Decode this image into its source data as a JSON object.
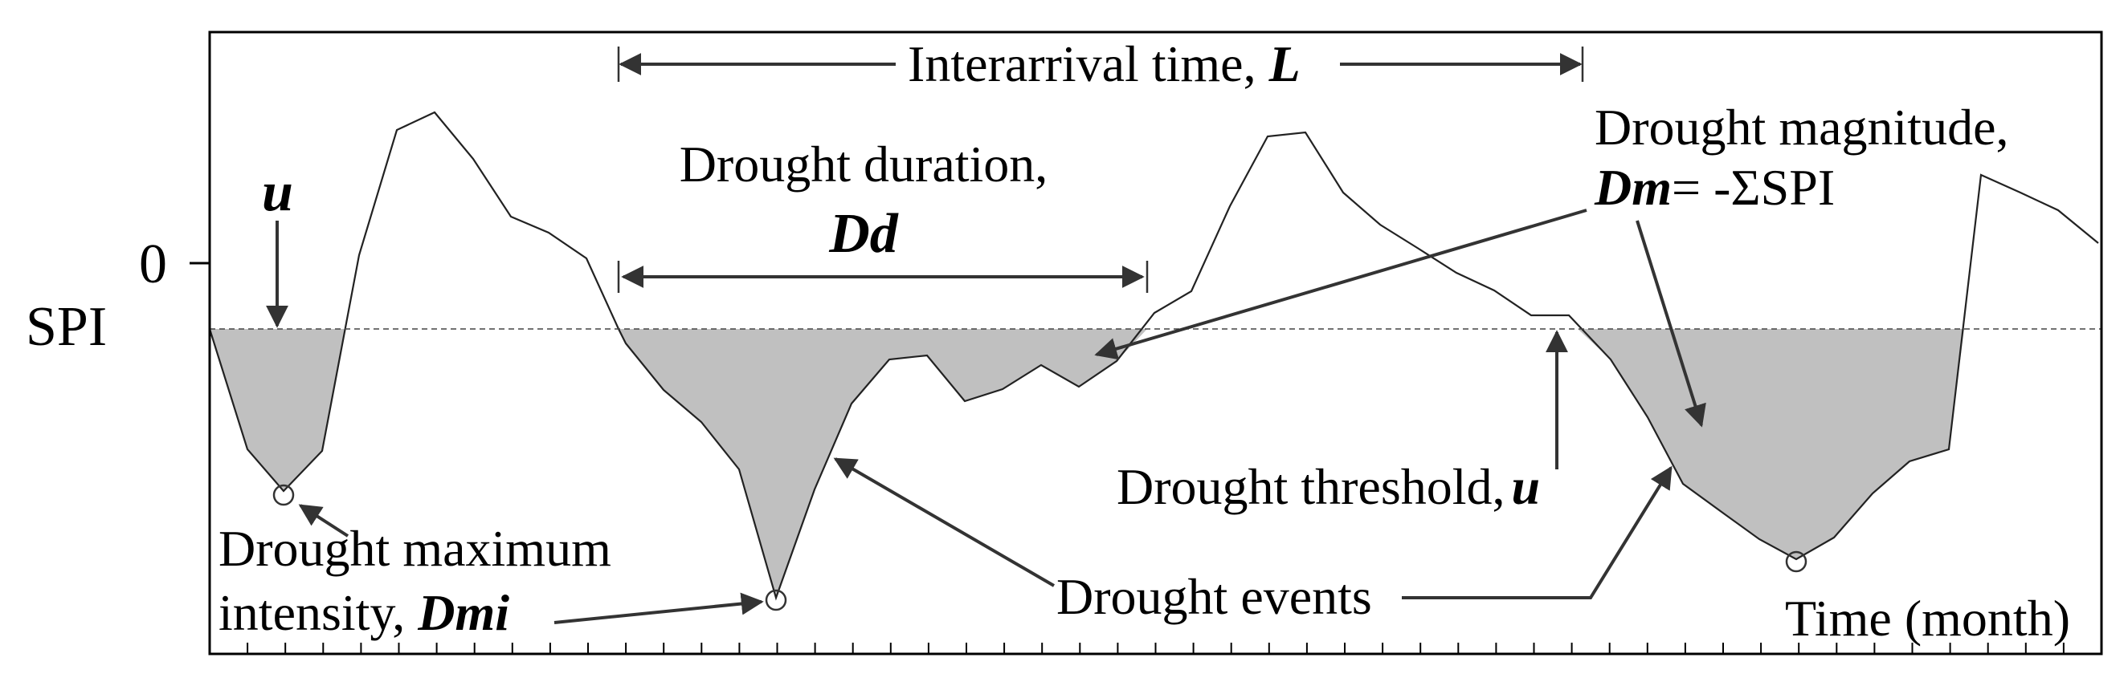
{
  "diagram": {
    "y_axis_label": "SPI",
    "zero_tick_label": "0",
    "x_axis_label": "Time (month)",
    "threshold_symbol": "u",
    "interarrival": {
      "text": "Interarrival time, ",
      "symbol": "L"
    },
    "duration": {
      "text": "Drought duration,",
      "symbol": "Dd"
    },
    "magnitude": {
      "text": "Drought magnitude,",
      "symbol": "Dm",
      "formula": "= -ΣSPI"
    },
    "threshold": {
      "text": "Drought threshold,",
      "symbol": "u"
    },
    "max_intensity": {
      "line1": "Drought maximum",
      "line2": "intensity, ",
      "symbol": "Dmi"
    },
    "events_label": "Drought events"
  },
  "colors": {
    "fill": "#c0c0c0",
    "line": "#222222",
    "arrow": "#333333",
    "frame": "#000000"
  }
}
